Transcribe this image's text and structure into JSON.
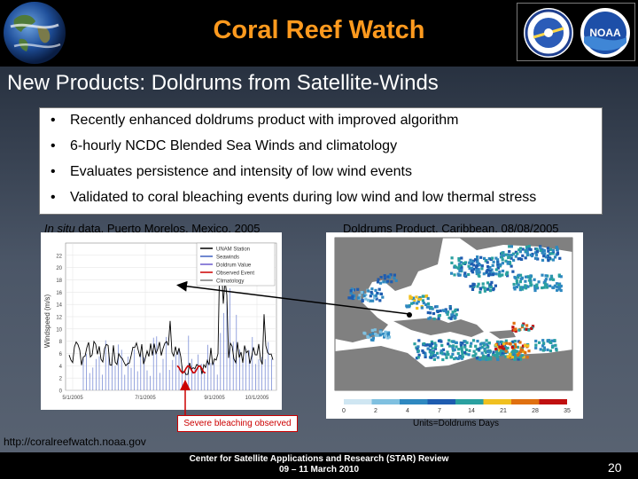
{
  "header": {
    "title": "Coral Reef Watch",
    "logo_text": "NOAA"
  },
  "subtitle": "New Products: Doldrums from Satellite-Winds",
  "bullets": [
    "Recently enhanced doldrums product with improved algorithm",
    "6-hourly NCDC Blended Sea Winds and climatology",
    "Evaluates persistence and intensity of low wind events",
    "Validated to coral bleaching events during low wind and low thermal stress"
  ],
  "captions": {
    "left_italic": "In situ",
    "left_rest": " data, Puerto Morelos, Mexico, 2005",
    "right": "Doldrums Product, Caribbean, 08/08/2005"
  },
  "chart_data": {
    "type": "line",
    "ylabel": "Windspeed (m/s)",
    "yticks": [
      0,
      2,
      4,
      6,
      8,
      10,
      12,
      14,
      16,
      18,
      20,
      22
    ],
    "xticks": [
      "5/1/2005",
      "7/1/2005",
      "9/1/2005",
      "10/1/2005"
    ],
    "legend": [
      "UNAM Station",
      "Seawinds",
      "Doldrum Value",
      "Observed Event",
      "Climatology"
    ],
    "legend_colors": [
      "#000000",
      "#4060c0",
      "#6a5acd",
      "#cc0000",
      "#7a7a7a"
    ]
  },
  "map": {
    "colorbar_ticks": [
      "0",
      "2",
      "4",
      "7",
      "14",
      "21",
      "28",
      "35"
    ],
    "colorbar_colors": [
      "#cfe6f2",
      "#7fc0e0",
      "#2e88c0",
      "#1e5cb0",
      "#2aa0a0",
      "#f0c020",
      "#e07010",
      "#c01010"
    ]
  },
  "callout": "Severe bleaching observed",
  "units": "Units=Doldrums Days",
  "url": "http://coralreefwatch.noaa.gov",
  "footer": {
    "line1": "Center for Satellite Applications and Research (STAR) Review",
    "line2": "09 – 11 March 2010",
    "page": "20"
  }
}
